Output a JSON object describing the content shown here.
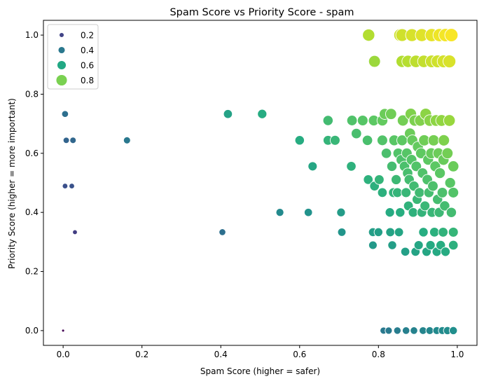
{
  "chart_data": {
    "type": "scatter",
    "title": "Spam Score vs Priority Score - spam",
    "xlabel": "Spam Score (higher = safer)",
    "ylabel": "Priority Score (higher = more important)",
    "xlim": [
      -0.05,
      1.05
    ],
    "ylim": [
      -0.05,
      1.05
    ],
    "xticks": [
      {
        "v": 0.0,
        "label": "0.0"
      },
      {
        "v": 0.2,
        "label": "0.2"
      },
      {
        "v": 0.4,
        "label": "0.4"
      },
      {
        "v": 0.6,
        "label": "0.6"
      },
      {
        "v": 0.8,
        "label": "0.8"
      },
      {
        "v": 1.0,
        "label": "1.0"
      }
    ],
    "yticks": [
      {
        "v": 0.0,
        "label": "0.0"
      },
      {
        "v": 0.2,
        "label": "0.2"
      },
      {
        "v": 0.4,
        "label": "0.4"
      },
      {
        "v": 0.6,
        "label": "0.6"
      },
      {
        "v": 0.8,
        "label": "0.8"
      },
      {
        "v": 1.0,
        "label": "1.0"
      }
    ],
    "grid": false,
    "colormap": "viridis",
    "hue_and_size": "average of spam score and priority score",
    "legend": {
      "placement": "upper-left",
      "entries": [
        {
          "label": "0.2",
          "value": 0.2,
          "color": "#414487"
        },
        {
          "label": "0.4",
          "value": 0.4,
          "color": "#2a788e"
        },
        {
          "label": "0.6",
          "value": 0.6,
          "color": "#22a884"
        },
        {
          "label": "0.8",
          "value": 0.8,
          "color": "#7ad151"
        }
      ]
    },
    "points": [
      [
        0.0,
        0.0
      ],
      [
        0.005,
        0.733
      ],
      [
        0.008,
        0.644
      ],
      [
        0.025,
        0.644
      ],
      [
        0.005,
        0.489
      ],
      [
        0.022,
        0.489
      ],
      [
        0.03,
        0.333
      ],
      [
        0.162,
        0.644
      ],
      [
        0.404,
        0.333
      ],
      [
        0.418,
        0.733
      ],
      [
        0.505,
        0.733
      ],
      [
        0.55,
        0.4
      ],
      [
        0.6,
        0.644
      ],
      [
        0.622,
        0.4
      ],
      [
        0.633,
        0.556
      ],
      [
        0.672,
        0.644
      ],
      [
        0.69,
        0.644
      ],
      [
        0.672,
        0.711
      ],
      [
        0.705,
        0.4
      ],
      [
        0.707,
        0.333
      ],
      [
        0.733,
        0.711
      ],
      [
        0.731,
        0.556
      ],
      [
        0.744,
        0.667
      ],
      [
        0.76,
        0.711
      ],
      [
        0.774,
        0.511
      ],
      [
        0.788,
        0.711
      ],
      [
        0.772,
        0.644
      ],
      [
        0.81,
        0.644
      ],
      [
        0.81,
        0.711
      ],
      [
        0.786,
        0.333
      ],
      [
        0.8,
        0.333
      ],
      [
        0.786,
        0.289
      ],
      [
        0.79,
        0.489
      ],
      [
        0.802,
        0.511
      ],
      [
        0.81,
        0.467
      ],
      [
        0.816,
        0.733
      ],
      [
        0.82,
        0.6
      ],
      [
        0.832,
        0.733
      ],
      [
        0.834,
        0.556
      ],
      [
        0.829,
        0.4
      ],
      [
        0.83,
        0.333
      ],
      [
        0.835,
        0.289
      ],
      [
        0.838,
        0.467
      ],
      [
        0.84,
        0.644
      ],
      [
        0.845,
        0.511
      ],
      [
        0.848,
        0.467
      ],
      [
        0.85,
        0.6
      ],
      [
        0.852,
        0.333
      ],
      [
        0.855,
        0.4
      ],
      [
        0.858,
        0.578
      ],
      [
        0.86,
        0.644
      ],
      [
        0.862,
        0.711
      ],
      [
        0.866,
        0.556
      ],
      [
        0.868,
        0.267
      ],
      [
        0.87,
        0.467
      ],
      [
        0.872,
        0.6
      ],
      [
        0.874,
        0.533
      ],
      [
        0.876,
        0.422
      ],
      [
        0.878,
        0.511
      ],
      [
        0.88,
        0.667
      ],
      [
        0.882,
        0.733
      ],
      [
        0.884,
        0.578
      ],
      [
        0.886,
        0.644
      ],
      [
        0.888,
        0.4
      ],
      [
        0.89,
        0.489
      ],
      [
        0.892,
        0.711
      ],
      [
        0.894,
        0.267
      ],
      [
        0.896,
        0.556
      ],
      [
        0.898,
        0.444
      ],
      [
        0.9,
        0.622
      ],
      [
        0.902,
        0.289
      ],
      [
        0.904,
        0.467
      ],
      [
        0.906,
        0.711
      ],
      [
        0.908,
        0.6
      ],
      [
        0.91,
        0.4
      ],
      [
        0.912,
        0.533
      ],
      [
        0.914,
        0.333
      ],
      [
        0.916,
        0.644
      ],
      [
        0.918,
        0.422
      ],
      [
        0.92,
        0.733
      ],
      [
        0.922,
        0.267
      ],
      [
        0.924,
        0.511
      ],
      [
        0.926,
        0.578
      ],
      [
        0.928,
        0.467
      ],
      [
        0.93,
        0.711
      ],
      [
        0.932,
        0.289
      ],
      [
        0.934,
        0.6
      ],
      [
        0.936,
        0.4
      ],
      [
        0.938,
        0.489
      ],
      [
        0.94,
        0.644
      ],
      [
        0.942,
        0.333
      ],
      [
        0.944,
        0.556
      ],
      [
        0.946,
        0.711
      ],
      [
        0.948,
        0.267
      ],
      [
        0.95,
        0.444
      ],
      [
        0.952,
        0.6
      ],
      [
        0.954,
        0.4
      ],
      [
        0.956,
        0.533
      ],
      [
        0.958,
        0.289
      ],
      [
        0.96,
        0.711
      ],
      [
        0.962,
        0.467
      ],
      [
        0.964,
        0.333
      ],
      [
        0.966,
        0.644
      ],
      [
        0.968,
        0.422
      ],
      [
        0.97,
        0.267
      ],
      [
        0.965,
        0.578
      ],
      [
        0.975,
        0.6
      ],
      [
        0.98,
        0.711
      ],
      [
        0.982,
        0.5
      ],
      [
        0.985,
        0.4
      ],
      [
        0.99,
        0.333
      ],
      [
        0.99,
        0.289
      ],
      [
        0.99,
        0.556
      ],
      [
        0.99,
        0.467
      ],
      [
        0.775,
        1.0
      ],
      [
        0.855,
        1.0
      ],
      [
        0.86,
        1.0
      ],
      [
        0.885,
        1.0
      ],
      [
        0.91,
        1.0
      ],
      [
        0.935,
        1.0
      ],
      [
        0.955,
        1.0
      ],
      [
        0.97,
        1.0
      ],
      [
        0.985,
        1.0
      ],
      [
        0.79,
        0.911
      ],
      [
        0.86,
        0.911
      ],
      [
        0.875,
        0.911
      ],
      [
        0.895,
        0.911
      ],
      [
        0.915,
        0.911
      ],
      [
        0.935,
        0.911
      ],
      [
        0.95,
        0.911
      ],
      [
        0.965,
        0.911
      ],
      [
        0.98,
        0.911
      ],
      [
        0.813,
        0.0
      ],
      [
        0.826,
        0.0
      ],
      [
        0.848,
        0.0
      ],
      [
        0.87,
        0.0
      ],
      [
        0.89,
        0.0
      ],
      [
        0.913,
        0.0
      ],
      [
        0.93,
        0.0
      ],
      [
        0.948,
        0.0
      ],
      [
        0.962,
        0.0
      ],
      [
        0.975,
        0.0
      ],
      [
        0.99,
        0.0
      ]
    ]
  }
}
